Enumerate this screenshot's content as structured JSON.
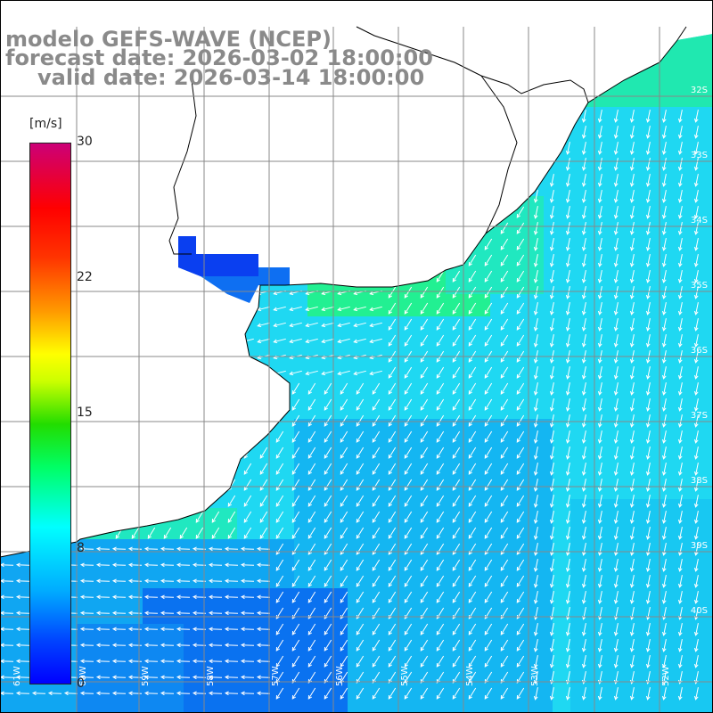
{
  "title": {
    "line1": "modelo GEFS-WAVE (NCEP)",
    "line2": "forecast date: 2026-03-02 18:00:00",
    "line3": "valid date: 2026-03-14 18:00:00"
  },
  "colorbar": {
    "unit": "[m/s]",
    "ticks": [
      {
        "label": "30",
        "value": 30
      },
      {
        "label": "22",
        "value": 22
      },
      {
        "label": "15",
        "value": 15
      },
      {
        "label": "8",
        "value": 8
      },
      {
        "label": "0",
        "value": 0
      }
    ],
    "colors": [
      "#0000ff",
      "#00aaff",
      "#00ffff",
      "#00ff66",
      "#ffff00",
      "#ff9900",
      "#ff0000",
      "#cc0077"
    ]
  },
  "map": {
    "land_color": "#ffffff",
    "grid_color": "#888888",
    "lat_labels": [
      "32S",
      "33S",
      "34S",
      "35S",
      "36S",
      "37S",
      "38S",
      "39S",
      "40S"
    ],
    "lon_labels": [
      "61W",
      "60W",
      "59W",
      "58W",
      "57W",
      "56W",
      "55W",
      "54W",
      "53W",
      "52W"
    ]
  }
}
